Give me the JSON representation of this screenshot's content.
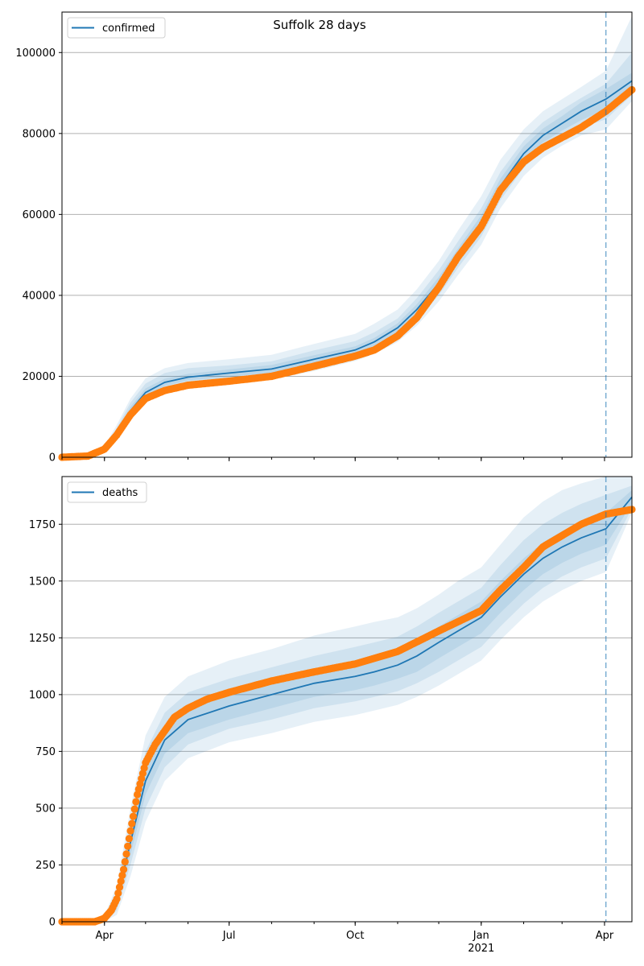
{
  "title": "Suffolk 28 days",
  "colors": {
    "model": "#1f77b4",
    "observed": "#ff7f0e",
    "band": "#1f77b4",
    "grid": "#b0b0b0",
    "forecast_line": "#1f77b4"
  },
  "x_axis": {
    "start": "2020-03-01",
    "end": "2021-04-21",
    "forecast_start": "2021-04-02",
    "ticks": [
      {
        "date": "2020-04-01",
        "label": "Apr"
      },
      {
        "date": "2020-07-01",
        "label": "Jul"
      },
      {
        "date": "2020-10-01",
        "label": "Oct"
      },
      {
        "date": "2021-01-01",
        "label": "Jan",
        "sublabel": "2021"
      },
      {
        "date": "2021-04-01",
        "label": "Apr"
      }
    ]
  },
  "chart_data": [
    {
      "type": "line",
      "legend": "confirmed",
      "legend_position": "top-left",
      "grid": "horizontal",
      "ylim": [
        0,
        110000
      ],
      "yticks": [
        "0",
        "20000",
        "40000",
        "60000",
        "80000",
        "100000"
      ],
      "series": [
        {
          "name": "confirmed",
          "role": "model median",
          "points": [
            [
              "2020-03-01",
              0
            ],
            [
              "2020-03-20",
              500
            ],
            [
              "2020-04-01",
              2000
            ],
            [
              "2020-04-10",
              6000
            ],
            [
              "2020-04-20",
              11500
            ],
            [
              "2020-05-01",
              16000
            ],
            [
              "2020-05-15",
              18500
            ],
            [
              "2020-06-01",
              19800
            ],
            [
              "2020-07-01",
              20800
            ],
            [
              "2020-08-01",
              21800
            ],
            [
              "2020-09-01",
              24200
            ],
            [
              "2020-10-01",
              26500
            ],
            [
              "2020-10-15",
              28500
            ],
            [
              "2020-11-01",
              32000
            ],
            [
              "2020-11-15",
              36500
            ],
            [
              "2020-12-01",
              43000
            ],
            [
              "2020-12-15",
              50000
            ],
            [
              "2021-01-01",
              58000
            ],
            [
              "2021-01-15",
              67000
            ],
            [
              "2021-02-01",
              75000
            ],
            [
              "2021-02-15",
              79500
            ],
            [
              "2021-03-01",
              82500
            ],
            [
              "2021-03-15",
              85500
            ],
            [
              "2021-04-02",
              88500
            ],
            [
              "2021-04-21",
              93000
            ]
          ],
          "bands": [
            {
              "lower": [
                0,
                300,
                1500,
                4500,
                9000,
                13500,
                16000,
                17500,
                18500,
                19200,
                21300,
                23800,
                25500,
                28500,
                32500,
                38500,
                45000,
                52500,
                61500,
                69500,
                74000,
                77000,
                79500,
                81000,
                88000
              ],
              "upper": [
                0,
                800,
                2800,
                8000,
                14500,
                19500,
                22000,
                23300,
                24200,
                25300,
                28000,
                30500,
                33000,
                36500,
                41500,
                48500,
                56000,
                64500,
                73500,
                81000,
                85500,
                88500,
                91500,
                95500,
                109000
              ]
            },
            {
              "lower": [
                0,
                380,
                1700,
                5000,
                9800,
                14300,
                16800,
                18300,
                19200,
                20000,
                22300,
                24800,
                26500,
                29800,
                34000,
                40000,
                46800,
                54500,
                63500,
                71500,
                76000,
                79000,
                81500,
                83500,
                89500
              ],
              "upper": [
                0,
                700,
                2400,
                7200,
                13500,
                18200,
                20800,
                22000,
                22700,
                23700,
                26400,
                28700,
                30900,
                34300,
                39300,
                46200,
                53300,
                61500,
                70500,
                78200,
                82800,
                85900,
                88800,
                92300,
                100000
              ]
            },
            {
              "lower": [
                0,
                440,
                1850,
                5500,
                10600,
                15100,
                17600,
                19000,
                19900,
                20800,
                23200,
                25600,
                27500,
                30900,
                35200,
                41500,
                48400,
                56200,
                65200,
                73200,
                77800,
                80700,
                83300,
                86000,
                91000
              ],
              "upper": [
                0,
                600,
                2150,
                6500,
                12500,
                17000,
                19400,
                20600,
                21700,
                22800,
                25200,
                27400,
                29500,
                33100,
                37800,
                44500,
                51600,
                59800,
                68800,
                76800,
                81200,
                84300,
                87700,
                91000,
                95000
              ]
            }
          ]
        },
        {
          "name": "",
          "role": "observed",
          "points": [
            [
              "2020-03-01",
              0
            ],
            [
              "2020-03-20",
              300
            ],
            [
              "2020-04-01",
              2000
            ],
            [
              "2020-04-10",
              5500
            ],
            [
              "2020-04-20",
              10500
            ],
            [
              "2020-05-01",
              14500
            ],
            [
              "2020-05-15",
              16500
            ],
            [
              "2020-06-01",
              17800
            ],
            [
              "2020-07-01",
              18800
            ],
            [
              "2020-08-01",
              20000
            ],
            [
              "2020-09-01",
              22500
            ],
            [
              "2020-10-01",
              25000
            ],
            [
              "2020-10-15",
              26500
            ],
            [
              "2020-11-01",
              30000
            ],
            [
              "2020-11-15",
              34500
            ],
            [
              "2020-12-01",
              42000
            ],
            [
              "2020-12-15",
              49500
            ],
            [
              "2021-01-01",
              57000
            ],
            [
              "2021-01-15",
              66000
            ],
            [
              "2021-02-01",
              73000
            ],
            [
              "2021-02-15",
              76500
            ],
            [
              "2021-03-01",
              79000
            ],
            [
              "2021-03-15",
              81500
            ],
            [
              "2021-04-02",
              85500
            ],
            [
              "2021-04-21",
              90800
            ]
          ]
        }
      ]
    },
    {
      "type": "line",
      "legend": "deaths",
      "legend_position": "top-left",
      "grid": "horizontal",
      "ylim": [
        0,
        1960
      ],
      "yticks": [
        "0",
        "250",
        "500",
        "750",
        "1000",
        "1250",
        "1500",
        "1750"
      ],
      "series": [
        {
          "name": "deaths",
          "role": "model median",
          "points": [
            [
              "2020-03-01",
              0
            ],
            [
              "2020-03-20",
              0
            ],
            [
              "2020-04-01",
              10
            ],
            [
              "2020-04-10",
              90
            ],
            [
              "2020-04-20",
              350
            ],
            [
              "2020-05-01",
              620
            ],
            [
              "2020-05-15",
              800
            ],
            [
              "2020-06-01",
              890
            ],
            [
              "2020-07-01",
              950
            ],
            [
              "2020-08-01",
              1000
            ],
            [
              "2020-09-01",
              1050
            ],
            [
              "2020-10-01",
              1080
            ],
            [
              "2020-10-15",
              1100
            ],
            [
              "2020-11-01",
              1130
            ],
            [
              "2020-11-15",
              1170
            ],
            [
              "2020-12-01",
              1230
            ],
            [
              "2020-12-15",
              1280
            ],
            [
              "2021-01-01",
              1340
            ],
            [
              "2021-01-15",
              1430
            ],
            [
              "2021-02-01",
              1530
            ],
            [
              "2021-02-15",
              1600
            ],
            [
              "2021-03-01",
              1650
            ],
            [
              "2021-03-15",
              1690
            ],
            [
              "2021-04-02",
              1730
            ],
            [
              "2021-04-21",
              1870
            ]
          ],
          "bands": [
            {
              "lower": [
                0,
                0,
                2,
                30,
                200,
                440,
                620,
                720,
                790,
                830,
                880,
                910,
                930,
                955,
                990,
                1040,
                1090,
                1150,
                1240,
                1340,
                1410,
                1460,
                1500,
                1540,
                1800
              ],
              "upper": [
                0,
                0,
                25,
                160,
                500,
                820,
                990,
                1080,
                1150,
                1200,
                1260,
                1300,
                1320,
                1340,
                1380,
                1440,
                1500,
                1560,
                1660,
                1780,
                1850,
                1900,
                1930,
                1960,
                1960
              ]
            },
            {
              "lower": [
                0,
                0,
                4,
                50,
                250,
                500,
                680,
                780,
                850,
                890,
                940,
                970,
                990,
                1015,
                1050,
                1100,
                1150,
                1210,
                1300,
                1400,
                1470,
                1520,
                1560,
                1600,
                1820
              ],
              "upper": [
                0,
                0,
                18,
                130,
                450,
                750,
                920,
                1010,
                1070,
                1120,
                1170,
                1210,
                1230,
                1255,
                1300,
                1360,
                1410,
                1470,
                1570,
                1680,
                1750,
                1800,
                1840,
                1880,
                1920
              ]
            },
            {
              "lower": [
                0,
                0,
                6,
                65,
                295,
                560,
                740,
                830,
                890,
                940,
                990,
                1020,
                1040,
                1070,
                1100,
                1160,
                1210,
                1270,
                1360,
                1460,
                1530,
                1580,
                1620,
                1660,
                1840
              ],
              "upper": [
                0,
                0,
                14,
                115,
                400,
                690,
                860,
                950,
                1010,
                1060,
                1110,
                1140,
                1160,
                1190,
                1240,
                1300,
                1350,
                1410,
                1500,
                1600,
                1670,
                1720,
                1760,
                1800,
                1900
              ]
            }
          ]
        },
        {
          "name": "",
          "role": "observed",
          "points": [
            [
              "2020-03-01",
              0
            ],
            [
              "2020-03-25",
              0
            ],
            [
              "2020-04-01",
              15
            ],
            [
              "2020-04-06",
              50
            ],
            [
              "2020-04-10",
              100
            ],
            [
              "2020-04-15",
              230
            ],
            [
              "2020-04-20",
              400
            ],
            [
              "2020-04-25",
              560
            ],
            [
              "2020-05-01",
              700
            ],
            [
              "2020-05-08",
              780
            ],
            [
              "2020-05-15",
              840
            ],
            [
              "2020-05-22",
              900
            ],
            [
              "2020-06-01",
              940
            ],
            [
              "2020-06-15",
              980
            ],
            [
              "2020-07-01",
              1010
            ],
            [
              "2020-08-01",
              1060
            ],
            [
              "2020-09-01",
              1100
            ],
            [
              "2020-10-01",
              1135
            ],
            [
              "2020-11-01",
              1190
            ],
            [
              "2020-12-01",
              1280
            ],
            [
              "2021-01-01",
              1370
            ],
            [
              "2021-01-15",
              1460
            ],
            [
              "2021-02-01",
              1560
            ],
            [
              "2021-02-15",
              1650
            ],
            [
              "2021-03-01",
              1700
            ],
            [
              "2021-03-15",
              1750
            ],
            [
              "2021-04-02",
              1795
            ],
            [
              "2021-04-21",
              1815
            ]
          ]
        }
      ]
    }
  ]
}
